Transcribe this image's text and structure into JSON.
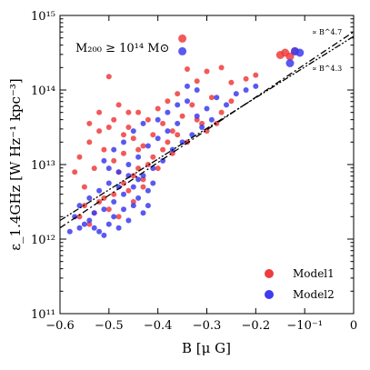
{
  "chart_data": {
    "type": "scatter",
    "title": "",
    "xlabel": "B [μ G]",
    "ylabel": "ε_1.4GHz [W Hz⁻¹ kpc⁻³]",
    "xlim": [
      -0.6,
      0
    ],
    "ylim_log10": [
      11,
      15
    ],
    "y_scale": "log",
    "x_ticks": [
      "−0.6",
      "−0.5",
      "−0.4",
      "−0.3",
      "−0.2",
      "−10⁻¹",
      "0"
    ],
    "y_ticks": [
      "10¹¹",
      "10¹²",
      "10¹³",
      "10¹⁴",
      "10¹⁵"
    ],
    "annotation": "M₂₀₀ ≥ 10¹⁴ M⊙",
    "legend": {
      "placement": "bottom-right",
      "entries": [
        {
          "label": "Model1",
          "color": "#f03c3c"
        },
        {
          "label": "Model2",
          "color": "#3c3cf0"
        }
      ]
    },
    "fit_lines": [
      {
        "label": "∝ B^4.7",
        "x": [
          -0.6,
          0
        ],
        "log10_y": [
          12.15,
          14.78
        ],
        "style": "dash-dot"
      },
      {
        "label": "∝ B^4.3",
        "x": [
          -0.6,
          0
        ],
        "log10_y": [
          12.25,
          14.72
        ],
        "style": "dash-dot-dot"
      }
    ],
    "series": [
      {
        "name": "Model1",
        "color": "#f03c3c",
        "points": [
          [
            -0.35,
            14.69
          ],
          [
            -0.15,
            14.47
          ],
          [
            -0.14,
            14.5
          ],
          [
            -0.13,
            14.45
          ],
          [
            -0.12,
            14.52
          ],
          [
            -0.2,
            14.2
          ],
          [
            -0.22,
            14.15
          ],
          [
            -0.25,
            14.1
          ],
          [
            -0.27,
            14.3
          ],
          [
            -0.3,
            14.25
          ],
          [
            -0.32,
            14.12
          ],
          [
            -0.34,
            14.28
          ],
          [
            -0.36,
            13.95
          ],
          [
            -0.38,
            13.85
          ],
          [
            -0.4,
            13.75
          ],
          [
            -0.42,
            13.6
          ],
          [
            -0.44,
            13.7
          ],
          [
            -0.46,
            13.5
          ],
          [
            -0.48,
            13.8
          ],
          [
            -0.5,
            14.18
          ],
          [
            -0.52,
            13.45
          ],
          [
            -0.54,
            13.3
          ],
          [
            -0.56,
            13.1
          ],
          [
            -0.57,
            12.9
          ],
          [
            -0.55,
            12.7
          ],
          [
            -0.53,
            12.95
          ],
          [
            -0.51,
            13.2
          ],
          [
            -0.49,
            13.05
          ],
          [
            -0.47,
            13.15
          ],
          [
            -0.45,
            13.35
          ],
          [
            -0.43,
            13.25
          ],
          [
            -0.41,
            13.4
          ],
          [
            -0.39,
            13.55
          ],
          [
            -0.37,
            13.45
          ],
          [
            -0.35,
            13.65
          ],
          [
            -0.33,
            13.8
          ],
          [
            -0.31,
            13.55
          ],
          [
            -0.29,
            13.9
          ],
          [
            -0.27,
            13.7
          ],
          [
            -0.25,
            13.85
          ],
          [
            -0.49,
            12.6
          ],
          [
            -0.5,
            12.4
          ],
          [
            -0.51,
            12.55
          ],
          [
            -0.48,
            12.3
          ],
          [
            -0.47,
            12.75
          ],
          [
            -0.46,
            12.65
          ],
          [
            -0.45,
            12.85
          ],
          [
            -0.44,
            12.95
          ],
          [
            -0.43,
            12.8
          ],
          [
            -0.42,
            13.0
          ],
          [
            -0.41,
            13.1
          ],
          [
            -0.4,
            12.95
          ],
          [
            -0.39,
            13.2
          ],
          [
            -0.38,
            13.3
          ],
          [
            -0.37,
            13.15
          ],
          [
            -0.53,
            12.35
          ],
          [
            -0.52,
            12.5
          ],
          [
            -0.54,
            12.2
          ],
          [
            -0.55,
            12.45
          ],
          [
            -0.56,
            12.3
          ],
          [
            -0.5,
            13.5
          ],
          [
            -0.49,
            13.6
          ],
          [
            -0.47,
            13.4
          ],
          [
            -0.46,
            13.7
          ],
          [
            -0.44,
            13.2
          ],
          [
            -0.52,
            13.7
          ],
          [
            -0.54,
            13.55
          ],
          [
            -0.48,
            12.9
          ],
          [
            -0.45,
            12.5
          ],
          [
            -0.43,
            12.7
          ],
          [
            -0.36,
            13.4
          ],
          [
            -0.34,
            13.3
          ],
          [
            -0.32,
            13.6
          ],
          [
            -0.3,
            13.45
          ],
          [
            -0.28,
            13.55
          ]
        ]
      },
      {
        "name": "Model2",
        "color": "#3c3cf0",
        "points": [
          [
            -0.35,
            14.52
          ],
          [
            -0.13,
            14.36
          ],
          [
            -0.12,
            14.52
          ],
          [
            -0.11,
            14.5
          ],
          [
            -0.2,
            14.05
          ],
          [
            -0.22,
            14.0
          ],
          [
            -0.24,
            13.95
          ],
          [
            -0.26,
            13.8
          ],
          [
            -0.28,
            13.9
          ],
          [
            -0.3,
            13.75
          ],
          [
            -0.32,
            13.65
          ],
          [
            -0.34,
            13.85
          ],
          [
            -0.36,
            13.55
          ],
          [
            -0.38,
            13.45
          ],
          [
            -0.4,
            13.35
          ],
          [
            -0.42,
            13.25
          ],
          [
            -0.44,
            13.1
          ],
          [
            -0.46,
            13.0
          ],
          [
            -0.48,
            12.9
          ],
          [
            -0.5,
            12.75
          ],
          [
            -0.52,
            12.65
          ],
          [
            -0.54,
            12.55
          ],
          [
            -0.56,
            12.45
          ],
          [
            -0.58,
            12.1
          ],
          [
            -0.57,
            12.3
          ],
          [
            -0.55,
            12.2
          ],
          [
            -0.53,
            12.35
          ],
          [
            -0.51,
            12.4
          ],
          [
            -0.49,
            12.5
          ],
          [
            -0.47,
            12.6
          ],
          [
            -0.45,
            12.7
          ],
          [
            -0.43,
            12.85
          ],
          [
            -0.41,
            12.95
          ],
          [
            -0.39,
            13.05
          ],
          [
            -0.37,
            13.2
          ],
          [
            -0.35,
            13.3
          ],
          [
            -0.33,
            13.4
          ],
          [
            -0.31,
            13.5
          ],
          [
            -0.29,
            13.6
          ],
          [
            -0.5,
            12.2
          ],
          [
            -0.49,
            12.3
          ],
          [
            -0.48,
            12.15
          ],
          [
            -0.47,
            12.4
          ],
          [
            -0.46,
            12.25
          ],
          [
            -0.45,
            12.45
          ],
          [
            -0.44,
            12.55
          ],
          [
            -0.43,
            12.35
          ],
          [
            -0.42,
            12.65
          ],
          [
            -0.41,
            12.75
          ],
          [
            -0.52,
            12.1
          ],
          [
            -0.51,
            12.05
          ],
          [
            -0.53,
            12.15
          ],
          [
            -0.54,
            12.25
          ],
          [
            -0.56,
            12.15
          ],
          [
            -0.4,
            13.6
          ],
          [
            -0.38,
            13.7
          ],
          [
            -0.36,
            13.8
          ],
          [
            -0.34,
            14.05
          ],
          [
            -0.32,
            14.0
          ],
          [
            -0.45,
            13.45
          ],
          [
            -0.43,
            13.55
          ],
          [
            -0.47,
            13.3
          ],
          [
            -0.49,
            13.2
          ],
          [
            -0.51,
            13.05
          ],
          [
            -0.42,
            12.45
          ],
          [
            -0.44,
            12.8
          ],
          [
            -0.46,
            12.85
          ],
          [
            -0.48,
            12.7
          ],
          [
            -0.5,
            12.95
          ]
        ]
      }
    ]
  }
}
